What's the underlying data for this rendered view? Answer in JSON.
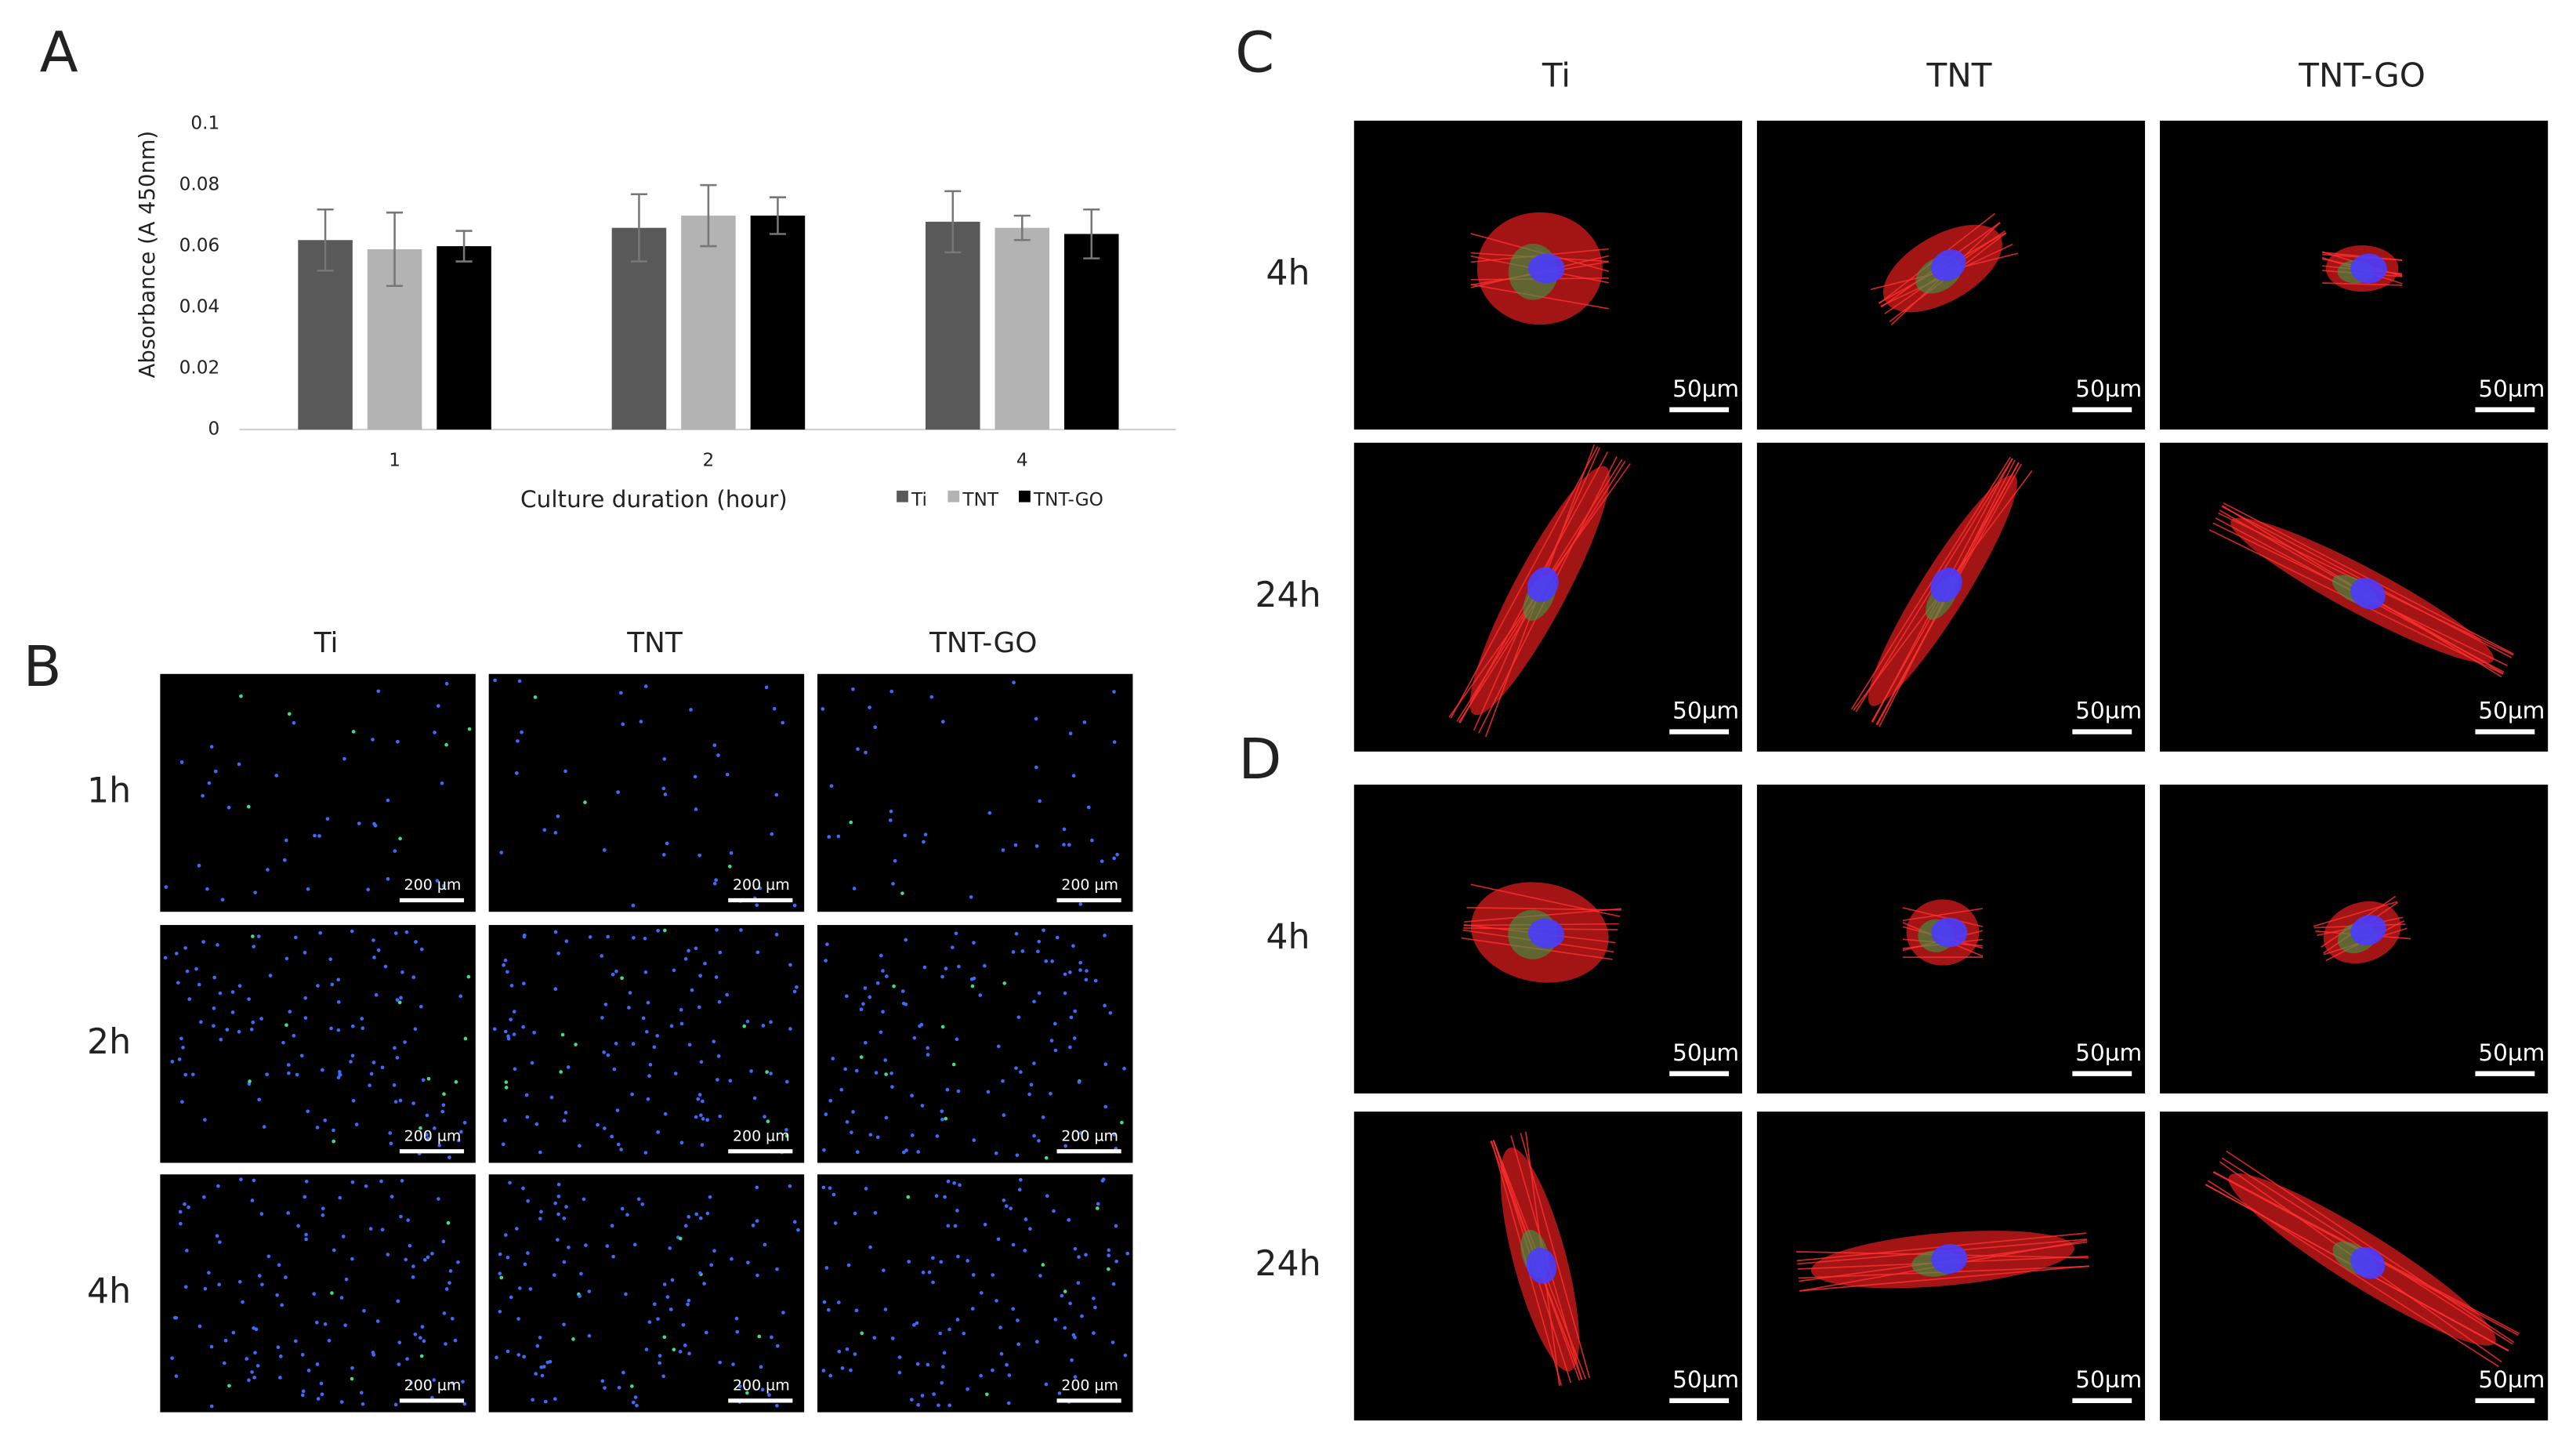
{
  "chart_data": {
    "type": "bar",
    "categories": [
      "1",
      "2",
      "4"
    ],
    "series": [
      {
        "name": "Ti",
        "color": "#595959",
        "values": [
          0.062,
          0.066,
          0.068
        ],
        "errors": [
          0.01,
          0.011,
          0.01
        ]
      },
      {
        "name": "TNT",
        "color": "#b3b3b3",
        "values": [
          0.059,
          0.07,
          0.066
        ],
        "errors": [
          0.012,
          0.01,
          0.004
        ]
      },
      {
        "name": "TNT-GO",
        "color": "#000000",
        "values": [
          0.06,
          0.07,
          0.064
        ],
        "errors": [
          0.005,
          0.006,
          0.008
        ]
      }
    ],
    "x_label": "Culture duration (hour)",
    "y_label": "Absorbance (A 450nm)",
    "ylim": [
      0,
      0.1
    ],
    "yticks": [
      0,
      0.02,
      0.04,
      0.06,
      0.08,
      0.1
    ],
    "grid": false,
    "legend": "bottom-right"
  },
  "panel_labels": [
    "A",
    "B",
    "C",
    "D"
  ],
  "panel_b": {
    "columns": [
      "Ti",
      "TNT",
      "TNT-GO"
    ],
    "rows": [
      "1h",
      "2h",
      "4h"
    ],
    "scale_label": "200 µm"
  },
  "panel_c": {
    "columns": [
      "Ti",
      "TNT",
      "TNT-GO"
    ],
    "rows": [
      "4h",
      "24h"
    ],
    "scale_label": "50µm"
  },
  "panel_d": {
    "rows": [
      "4h",
      "24h"
    ],
    "scale_label": "50µm"
  }
}
